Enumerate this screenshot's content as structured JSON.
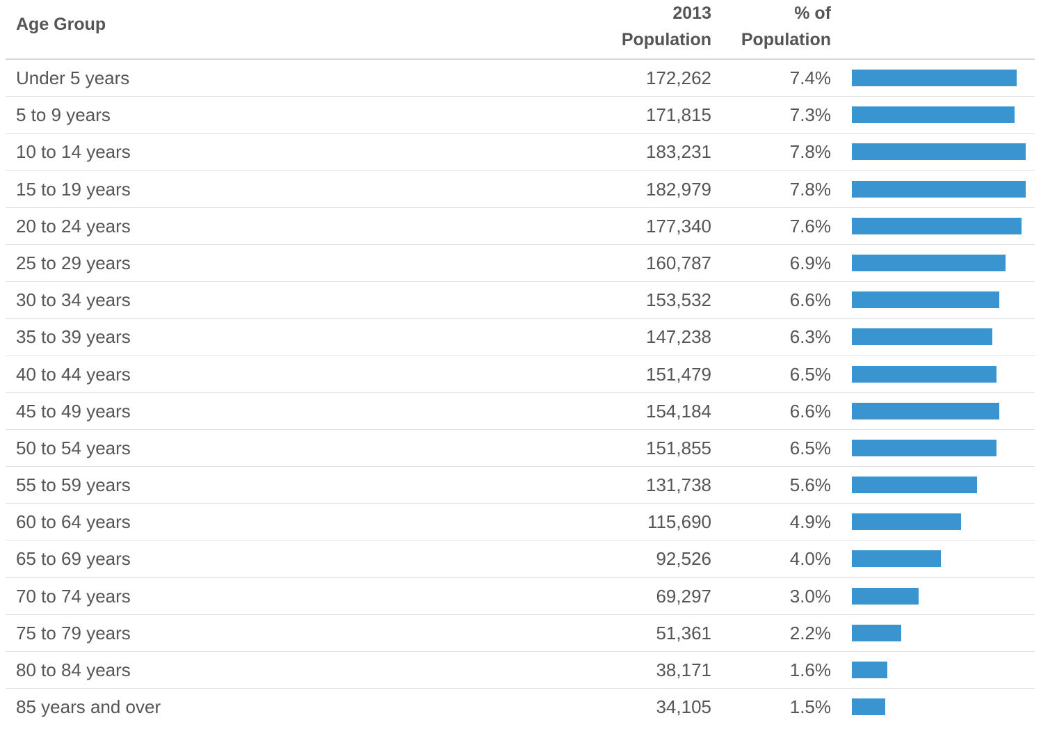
{
  "colors": {
    "bar": "#3a94cf",
    "text": "#555555",
    "rule": "#d7d7d7"
  },
  "header": {
    "age_label": "Age Group",
    "pop_label_line1": "2013",
    "pop_label_line2": "Population",
    "pct_label_line1": "% of",
    "pct_label_line2": "Population"
  },
  "chart_data": {
    "type": "table",
    "columns": [
      "Age Group",
      "2013 Population",
      "% of Population"
    ],
    "max_percent": 7.8,
    "rows": [
      {
        "age": "Under 5 years",
        "population": "172,262",
        "percent_label": "7.4%",
        "percent": 7.4
      },
      {
        "age": "5 to 9 years",
        "population": "171,815",
        "percent_label": "7.3%",
        "percent": 7.3
      },
      {
        "age": "10 to 14 years",
        "population": "183,231",
        "percent_label": "7.8%",
        "percent": 7.8
      },
      {
        "age": "15 to 19 years",
        "population": "182,979",
        "percent_label": "7.8%",
        "percent": 7.8
      },
      {
        "age": "20 to 24 years",
        "population": "177,340",
        "percent_label": "7.6%",
        "percent": 7.6
      },
      {
        "age": "25 to 29 years",
        "population": "160,787",
        "percent_label": "6.9%",
        "percent": 6.9
      },
      {
        "age": "30 to 34 years",
        "population": "153,532",
        "percent_label": "6.6%",
        "percent": 6.6
      },
      {
        "age": "35 to 39 years",
        "population": "147,238",
        "percent_label": "6.3%",
        "percent": 6.3
      },
      {
        "age": "40 to 44 years",
        "population": "151,479",
        "percent_label": "6.5%",
        "percent": 6.5
      },
      {
        "age": "45 to 49 years",
        "population": "154,184",
        "percent_label": "6.6%",
        "percent": 6.6
      },
      {
        "age": "50 to 54 years",
        "population": "151,855",
        "percent_label": "6.5%",
        "percent": 6.5
      },
      {
        "age": "55 to 59 years",
        "population": "131,738",
        "percent_label": "5.6%",
        "percent": 5.6
      },
      {
        "age": "60 to 64 years",
        "population": "115,690",
        "percent_label": "4.9%",
        "percent": 4.9
      },
      {
        "age": "65 to 69 years",
        "population": "92,526",
        "percent_label": "4.0%",
        "percent": 4.0
      },
      {
        "age": "70 to 74 years",
        "population": "69,297",
        "percent_label": "3.0%",
        "percent": 3.0
      },
      {
        "age": "75 to 79 years",
        "population": "51,361",
        "percent_label": "2.2%",
        "percent": 2.2
      },
      {
        "age": "80 to 84 years",
        "population": "38,171",
        "percent_label": "1.6%",
        "percent": 1.6
      },
      {
        "age": "85 years and over",
        "population": "34,105",
        "percent_label": "1.5%",
        "percent": 1.5
      }
    ]
  }
}
